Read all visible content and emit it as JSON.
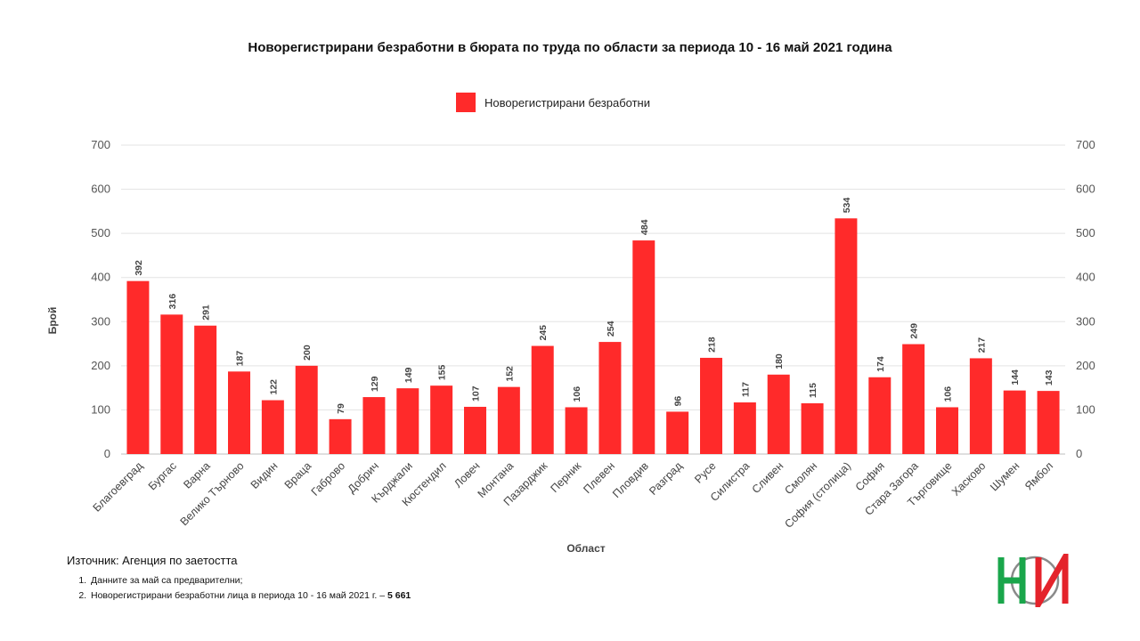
{
  "chart_data": {
    "type": "bar",
    "title": "Новорегистрирани безработни в бюрата по труда по области за периода 10 - 16 май 2021 година",
    "xlabel": "Област",
    "ylabel": "Брой",
    "ylim": [
      0,
      700
    ],
    "yticks": [
      "0",
      "100",
      "200",
      "300",
      "400",
      "500",
      "600",
      "700"
    ],
    "secondary_axis": true,
    "grid": true,
    "legend_position": "top",
    "series": [
      {
        "name": "Новорегистрирани безработни",
        "color": "#ff2a2a",
        "values": [
          392,
          316,
          291,
          187,
          122,
          200,
          79,
          129,
          149,
          155,
          107,
          152,
          245,
          106,
          254,
          484,
          96,
          218,
          117,
          180,
          115,
          534,
          174,
          249,
          106,
          217,
          144,
          143
        ]
      }
    ],
    "categories": [
      "Благоевград",
      "Бургас",
      "Варна",
      "Велико Търново",
      "Видин",
      "Враца",
      "Габрово",
      "Добрич",
      "Кърджали",
      "Кюстендил",
      "Ловеч",
      "Монтана",
      "Пазарджик",
      "Перник",
      "Плевен",
      "Пловдив",
      "Разград",
      "Русе",
      "Силистра",
      "Сливен",
      "Смолян",
      "София (столица)",
      "София",
      "Стара Загора",
      "Търговище",
      "Хасково",
      "Шумен",
      "Ямбол"
    ]
  },
  "source": "Източник: Агенция по заетостта",
  "footnotes": {
    "note1": "Данните за май са предварителни;",
    "note2_text": "Новорегистрирани безработни лица в периода 10 - 16 май 2021 г. – ",
    "note2_total": "5 661"
  },
  "logo": {
    "icon": "nsi-logo",
    "colors": [
      "#1aa64b",
      "#e4232b",
      "#8a8a8a"
    ]
  }
}
